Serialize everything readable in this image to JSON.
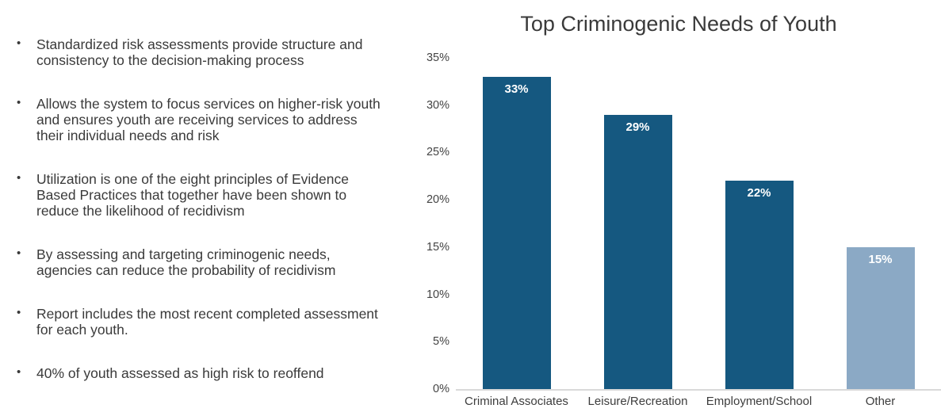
{
  "bullets": [
    "Standardized risk assessments provide structure and consistency to the decision-making process",
    "Allows the system to focus services on higher-risk youth and ensures youth are receiving services to address their individual needs and risk",
    "Utilization is one of the eight principles of Evidence Based Practices that together have been shown to reduce the likelihood of recidivism",
    "By assessing and targeting criminogenic needs, agencies can reduce the probability of recidivism",
    "Report includes the most recent completed assessment for each youth.",
    "40% of youth assessed as high risk to reoffend"
  ],
  "bullet_glyph": "•",
  "chart_data": {
    "type": "bar",
    "title": "Top Criminogenic Needs of Youth",
    "categories": [
      "Criminal Associates",
      "Leisure/Recreation",
      "Employment/School",
      "Other"
    ],
    "values": [
      33,
      29,
      22,
      15
    ],
    "data_labels": [
      "33%",
      "29%",
      "22%",
      "15%"
    ],
    "bar_colors": [
      "#155880",
      "#155880",
      "#155880",
      "#8ba9c5"
    ],
    "data_label_color": "#ffffff",
    "xlabel": "",
    "ylabel": "",
    "ylim": [
      0,
      35
    ],
    "ytick_step": 5,
    "yticks": [
      "0%",
      "5%",
      "10%",
      "15%",
      "20%",
      "25%",
      "30%",
      "35%"
    ],
    "grid": false,
    "legend": false,
    "axis_line_color": "#d9d9d9",
    "background": "#ffffff"
  }
}
